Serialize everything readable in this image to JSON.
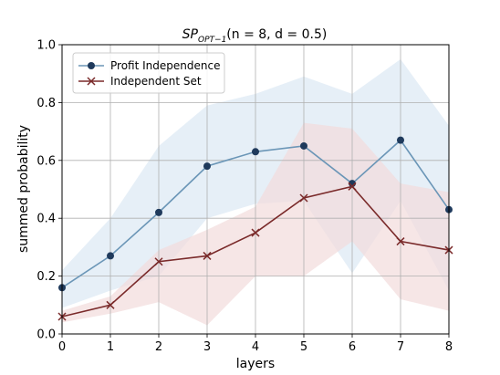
{
  "chart_data": {
    "type": "line",
    "title": {
      "sp": "SP",
      "sub": "OPT−1",
      "rest": "(n = 8, d = 0.5)"
    },
    "xlabel": "layers",
    "ylabel": "summed probability",
    "x": [
      0,
      1,
      2,
      3,
      4,
      5,
      6,
      7,
      8
    ],
    "xlim": [
      0,
      8
    ],
    "ylim": [
      0.0,
      1.0
    ],
    "xticks": [
      "0",
      "1",
      "2",
      "3",
      "4",
      "5",
      "6",
      "7",
      "8"
    ],
    "yticks": [
      "0.0",
      "0.2",
      "0.4",
      "0.6",
      "0.8",
      "1.0"
    ],
    "grid": true,
    "legend_position": "top-left",
    "series": [
      {
        "name": "Profit Independence",
        "marker": "circle",
        "color": "#6b96b7",
        "marker_color": "#1f3a5c",
        "band_color": "#dce8f3",
        "values": [
          0.16,
          0.27,
          0.42,
          0.58,
          0.63,
          0.65,
          0.52,
          0.67,
          0.43
        ],
        "upper": [
          0.22,
          0.4,
          0.65,
          0.79,
          0.83,
          0.89,
          0.83,
          0.95,
          0.72
        ],
        "lower": [
          0.09,
          0.15,
          0.2,
          0.4,
          0.45,
          0.46,
          0.21,
          0.46,
          0.15
        ]
      },
      {
        "name": "Independent Set",
        "marker": "x",
        "color": "#7a2a2a",
        "marker_color": "#7a2a2a",
        "band_color": "#f2dcdc",
        "values": [
          0.06,
          0.1,
          0.25,
          0.27,
          0.35,
          0.47,
          0.51,
          0.32,
          0.29
        ],
        "upper": [
          0.08,
          0.13,
          0.29,
          0.36,
          0.44,
          0.73,
          0.71,
          0.52,
          0.49
        ],
        "lower": [
          0.04,
          0.07,
          0.11,
          0.03,
          0.2,
          0.2,
          0.32,
          0.12,
          0.08
        ]
      }
    ]
  }
}
